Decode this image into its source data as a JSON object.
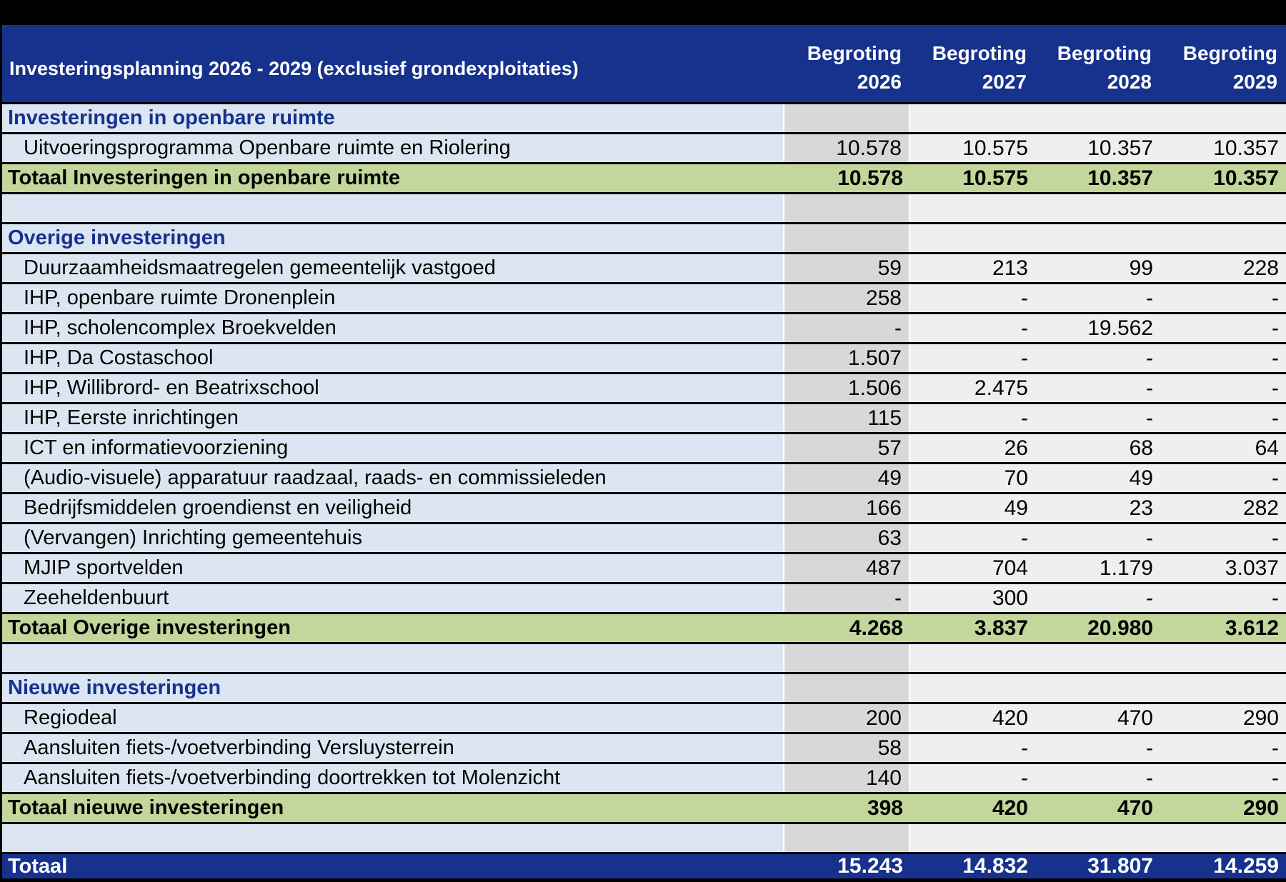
{
  "colors": {
    "frame": "#000000",
    "navy": "#16328C",
    "section_text": "#16318E",
    "light_blue": "#DCE6F2",
    "gray": "#D8D8D8",
    "light": "#EFEFEF",
    "green": "#C3D69B",
    "text": "#000000"
  },
  "header": {
    "title": "Investeringsplanning 2026 - 2029 (exclusief grondexploitaties)",
    "columns": [
      {
        "label": "Begroting",
        "year": "2026"
      },
      {
        "label": "Begroting",
        "year": "2027"
      },
      {
        "label": "Begroting",
        "year": "2028"
      },
      {
        "label": "Begroting",
        "year": "2029"
      }
    ]
  },
  "sections": [
    {
      "name": "Investeringen in openbare ruimte",
      "rows": [
        {
          "label": "Uitvoeringsprogramma Openbare ruimte en Riolering",
          "values": [
            "10.578",
            "10.575",
            "10.357",
            "10.357"
          ]
        }
      ],
      "total": {
        "label": "Totaal Investeringen in openbare ruimte",
        "values": [
          "10.578",
          "10.575",
          "10.357",
          "10.357"
        ]
      }
    },
    {
      "name": "Overige investeringen",
      "rows": [
        {
          "label": "Duurzaamheidsmaatregelen gemeentelijk vastgoed",
          "values": [
            "59",
            "213",
            "99",
            "228"
          ]
        },
        {
          "label": "IHP, openbare ruimte Dronenplein",
          "values": [
            "258",
            "-",
            "-",
            "-"
          ]
        },
        {
          "label": "IHP, scholencomplex Broekvelden",
          "values": [
            "-",
            "-",
            "19.562",
            "-"
          ]
        },
        {
          "label": "IHP, Da Costaschool",
          "values": [
            "1.507",
            "-",
            "-",
            "-"
          ]
        },
        {
          "label": "IHP, Willibrord- en Beatrixschool",
          "values": [
            "1.506",
            "2.475",
            "-",
            "-"
          ]
        },
        {
          "label": "IHP, Eerste inrichtingen",
          "values": [
            "115",
            "-",
            "-",
            "-"
          ]
        },
        {
          "label": "ICT en informatievoorziening",
          "values": [
            "57",
            "26",
            "68",
            "64"
          ]
        },
        {
          "label": "(Audio-visuele) apparatuur raadzaal, raads- en commissieleden",
          "values": [
            "49",
            "70",
            "49",
            "-"
          ]
        },
        {
          "label": "Bedrijfsmiddelen groendienst en veiligheid",
          "values": [
            "166",
            "49",
            "23",
            "282"
          ]
        },
        {
          "label": "(Vervangen) Inrichting gemeentehuis",
          "values": [
            "63",
            "-",
            "-",
            "-"
          ]
        },
        {
          "label": "MJIP sportvelden",
          "values": [
            "487",
            "704",
            "1.179",
            "3.037"
          ]
        },
        {
          "label": "Zeeheldenbuurt",
          "values": [
            "-",
            "300",
            "-",
            "-"
          ]
        }
      ],
      "total": {
        "label": "Totaal Overige investeringen",
        "values": [
          "4.268",
          "3.837",
          "20.980",
          "3.612"
        ]
      }
    },
    {
      "name": "Nieuwe investeringen",
      "rows": [
        {
          "label": "Regiodeal",
          "values": [
            "200",
            "420",
            "470",
            "290"
          ]
        },
        {
          "label": "Aansluiten fiets-/voetverbinding Versluysterrein",
          "values": [
            "58",
            "-",
            "-",
            "-"
          ]
        },
        {
          "label": "Aansluiten fiets-/voetverbinding doortrekken tot Molenzicht",
          "values": [
            "140",
            "-",
            "-",
            "-"
          ]
        }
      ],
      "total": {
        "label": "Totaal nieuwe investeringen",
        "values": [
          "398",
          "420",
          "470",
          "290"
        ]
      }
    }
  ],
  "grand_total": {
    "label": "Totaal",
    "values": [
      "15.243",
      "14.832",
      "31.807",
      "14.259"
    ]
  }
}
